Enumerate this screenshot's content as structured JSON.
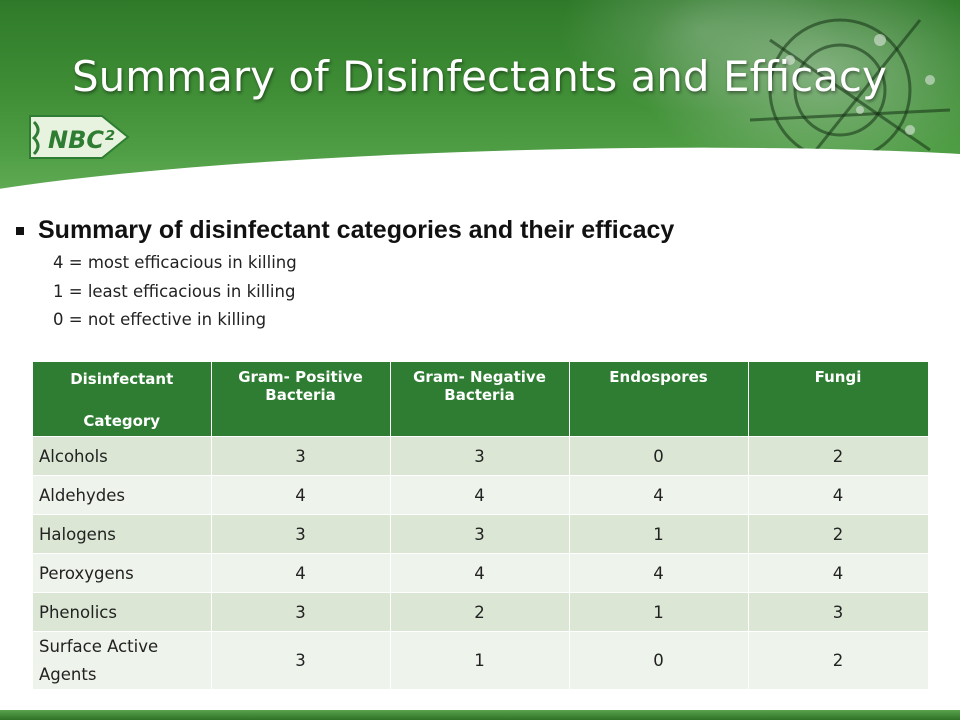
{
  "slide": {
    "title": "Summary of Disinfectants and Efficacy",
    "logo_text": "NBC²",
    "bullet": "Summary of disinfectant categories and their efficacy",
    "scale": [
      "4 = most efficacious in killing",
      "1 = least efficacious in killing",
      "0 = not effective in killing"
    ]
  },
  "table": {
    "headers": {
      "category_line1": "Disinfectant",
      "category_line2": "Category",
      "gram_positive": "Gram- Positive Bacteria",
      "gram_negative": "Gram- Negative Bacteria",
      "endospores": "Endospores",
      "fungi": "Fungi"
    },
    "rows": [
      {
        "category": "Alcohols",
        "gram_positive": "3",
        "gram_negative": "3",
        "endospores": "0",
        "fungi": "2"
      },
      {
        "category": "Aldehydes",
        "gram_positive": "4",
        "gram_negative": "4",
        "endospores": "4",
        "fungi": "4"
      },
      {
        "category": "Halogens",
        "gram_positive": "3",
        "gram_negative": "3",
        "endospores": "1",
        "fungi": "2"
      },
      {
        "category": "Peroxygens",
        "gram_positive": "4",
        "gram_negative": "4",
        "endospores": "4",
        "fungi": "4"
      },
      {
        "category": "Phenolics",
        "gram_positive": "3",
        "gram_negative": "2",
        "endospores": "1",
        "fungi": "3"
      },
      {
        "category": "Surface Active Agents",
        "gram_positive": "3",
        "gram_negative": "1",
        "endospores": "0",
        "fungi": "2"
      }
    ]
  },
  "colors": {
    "header_green": "#2e7d32",
    "row_odd": "#dbe7d4",
    "row_even": "#eef3eb"
  }
}
